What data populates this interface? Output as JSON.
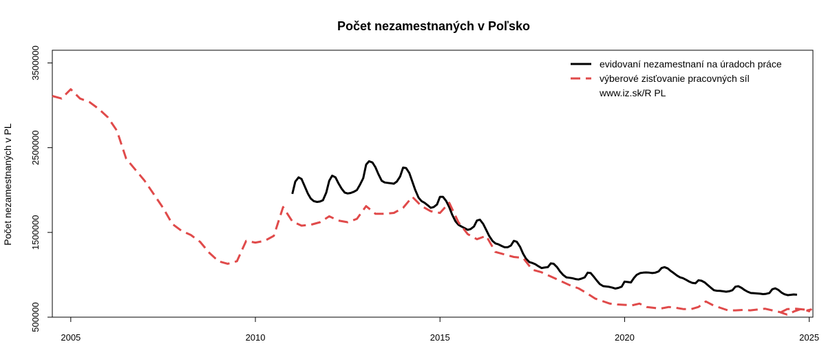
{
  "chart_data": {
    "type": "line",
    "title": "Počet nezamestnaných v Poľsko",
    "xlabel": "",
    "ylabel": "Počet nezamestnaných v PL",
    "xlim": [
      2004.5,
      2025.1
    ],
    "ylim": [
      500000,
      3650000
    ],
    "x_ticks": [
      2005,
      2010,
      2015,
      2020,
      2025
    ],
    "y_ticks": [
      500000,
      1500000,
      2500000,
      3500000
    ],
    "grid": false,
    "legend_position": "top-right",
    "legend_note": "www.iz.sk/R PL",
    "series": [
      {
        "name": "evidovaní nezamestnaní na úradoch práce",
        "color": "#000000",
        "style": "solid",
        "points": [
          [
            2011.0,
            1955000
          ],
          [
            2011.08,
            2100000
          ],
          [
            2011.17,
            2150000
          ],
          [
            2011.25,
            2130000
          ],
          [
            2011.33,
            2050000
          ],
          [
            2011.42,
            1960000
          ],
          [
            2011.5,
            1900000
          ],
          [
            2011.58,
            1870000
          ],
          [
            2011.67,
            1860000
          ],
          [
            2011.75,
            1865000
          ],
          [
            2011.83,
            1880000
          ],
          [
            2011.92,
            1970000
          ],
          [
            2012.0,
            2110000
          ],
          [
            2012.08,
            2170000
          ],
          [
            2012.17,
            2150000
          ],
          [
            2012.25,
            2080000
          ],
          [
            2012.33,
            2020000
          ],
          [
            2012.42,
            1970000
          ],
          [
            2012.5,
            1960000
          ],
          [
            2012.58,
            1965000
          ],
          [
            2012.67,
            1980000
          ],
          [
            2012.75,
            2000000
          ],
          [
            2012.83,
            2060000
          ],
          [
            2012.92,
            2140000
          ],
          [
            2013.0,
            2300000
          ],
          [
            2013.08,
            2340000
          ],
          [
            2013.17,
            2325000
          ],
          [
            2013.25,
            2270000
          ],
          [
            2013.33,
            2190000
          ],
          [
            2013.42,
            2110000
          ],
          [
            2013.5,
            2090000
          ],
          [
            2013.58,
            2085000
          ],
          [
            2013.67,
            2080000
          ],
          [
            2013.75,
            2075000
          ],
          [
            2013.83,
            2100000
          ],
          [
            2013.92,
            2160000
          ],
          [
            2014.0,
            2265000
          ],
          [
            2014.08,
            2260000
          ],
          [
            2014.17,
            2200000
          ],
          [
            2014.25,
            2100000
          ],
          [
            2014.33,
            2000000
          ],
          [
            2014.42,
            1910000
          ],
          [
            2014.5,
            1870000
          ],
          [
            2014.58,
            1850000
          ],
          [
            2014.67,
            1820000
          ],
          [
            2014.75,
            1790000
          ],
          [
            2014.83,
            1800000
          ],
          [
            2014.92,
            1830000
          ],
          [
            2015.0,
            1920000
          ],
          [
            2015.08,
            1920000
          ],
          [
            2015.17,
            1870000
          ],
          [
            2015.25,
            1800000
          ],
          [
            2015.33,
            1710000
          ],
          [
            2015.42,
            1630000
          ],
          [
            2015.5,
            1590000
          ],
          [
            2015.58,
            1570000
          ],
          [
            2015.67,
            1550000
          ],
          [
            2015.75,
            1530000
          ],
          [
            2015.83,
            1540000
          ],
          [
            2015.92,
            1570000
          ],
          [
            2016.0,
            1640000
          ],
          [
            2016.08,
            1650000
          ],
          [
            2016.17,
            1600000
          ],
          [
            2016.25,
            1530000
          ],
          [
            2016.33,
            1460000
          ],
          [
            2016.42,
            1400000
          ],
          [
            2016.5,
            1370000
          ],
          [
            2016.58,
            1360000
          ],
          [
            2016.67,
            1340000
          ],
          [
            2016.75,
            1325000
          ],
          [
            2016.83,
            1325000
          ],
          [
            2016.92,
            1345000
          ],
          [
            2017.0,
            1400000
          ],
          [
            2017.08,
            1390000
          ],
          [
            2017.17,
            1330000
          ],
          [
            2017.25,
            1250000
          ],
          [
            2017.33,
            1190000
          ],
          [
            2017.42,
            1150000
          ],
          [
            2017.5,
            1140000
          ],
          [
            2017.58,
            1125000
          ],
          [
            2017.67,
            1100000
          ],
          [
            2017.75,
            1080000
          ],
          [
            2017.83,
            1085000
          ],
          [
            2017.92,
            1090000
          ],
          [
            2018.0,
            1135000
          ],
          [
            2018.08,
            1130000
          ],
          [
            2018.17,
            1090000
          ],
          [
            2018.25,
            1040000
          ],
          [
            2018.33,
            1000000
          ],
          [
            2018.42,
            970000
          ],
          [
            2018.5,
            965000
          ],
          [
            2018.58,
            960000
          ],
          [
            2018.67,
            950000
          ],
          [
            2018.75,
            945000
          ],
          [
            2018.83,
            955000
          ],
          [
            2018.92,
            970000
          ],
          [
            2019.0,
            1025000
          ],
          [
            2019.08,
            1020000
          ],
          [
            2019.17,
            975000
          ],
          [
            2019.25,
            930000
          ],
          [
            2019.33,
            890000
          ],
          [
            2019.42,
            866000
          ],
          [
            2019.5,
            862000
          ],
          [
            2019.58,
            858000
          ],
          [
            2019.67,
            848000
          ],
          [
            2019.75,
            838000
          ],
          [
            2019.83,
            845000
          ],
          [
            2019.92,
            860000
          ],
          [
            2020.0,
            920000
          ],
          [
            2020.08,
            915000
          ],
          [
            2020.17,
            910000
          ],
          [
            2020.25,
            960000
          ],
          [
            2020.33,
            1000000
          ],
          [
            2020.42,
            1020000
          ],
          [
            2020.5,
            1025000
          ],
          [
            2020.58,
            1028000
          ],
          [
            2020.67,
            1025000
          ],
          [
            2020.75,
            1020000
          ],
          [
            2020.83,
            1025000
          ],
          [
            2020.92,
            1040000
          ],
          [
            2021.0,
            1080000
          ],
          [
            2021.08,
            1090000
          ],
          [
            2021.17,
            1075000
          ],
          [
            2021.25,
            1045000
          ],
          [
            2021.33,
            1020000
          ],
          [
            2021.42,
            990000
          ],
          [
            2021.5,
            970000
          ],
          [
            2021.58,
            960000
          ],
          [
            2021.67,
            940000
          ],
          [
            2021.75,
            920000
          ],
          [
            2021.83,
            905000
          ],
          [
            2021.92,
            900000
          ],
          [
            2022.0,
            935000
          ],
          [
            2022.08,
            930000
          ],
          [
            2022.17,
            910000
          ],
          [
            2022.25,
            880000
          ],
          [
            2022.33,
            850000
          ],
          [
            2022.42,
            818000
          ],
          [
            2022.5,
            812000
          ],
          [
            2022.58,
            810000
          ],
          [
            2022.67,
            805000
          ],
          [
            2022.75,
            800000
          ],
          [
            2022.83,
            805000
          ],
          [
            2022.92,
            818000
          ],
          [
            2023.0,
            860000
          ],
          [
            2023.08,
            865000
          ],
          [
            2023.17,
            845000
          ],
          [
            2023.25,
            820000
          ],
          [
            2023.33,
            800000
          ],
          [
            2023.42,
            785000
          ],
          [
            2023.5,
            783000
          ],
          [
            2023.58,
            780000
          ],
          [
            2023.67,
            777000
          ],
          [
            2023.75,
            772000
          ],
          [
            2023.83,
            775000
          ],
          [
            2023.92,
            785000
          ],
          [
            2024.0,
            830000
          ],
          [
            2024.08,
            840000
          ],
          [
            2024.17,
            820000
          ],
          [
            2024.25,
            790000
          ],
          [
            2024.33,
            770000
          ],
          [
            2024.42,
            760000
          ],
          [
            2024.5,
            764000
          ],
          [
            2024.58,
            768000
          ],
          [
            2024.67,
            765000
          ]
        ]
      },
      {
        "name": "výberové zisťovanie pracovných síl",
        "color": "#e04a4a",
        "style": "dashed",
        "points": [
          [
            2004.5,
            3110000
          ],
          [
            2004.75,
            3080000
          ],
          [
            2005.0,
            3190000
          ],
          [
            2005.25,
            3080000
          ],
          [
            2005.5,
            3040000
          ],
          [
            2005.75,
            2960000
          ],
          [
            2006.0,
            2860000
          ],
          [
            2006.25,
            2700000
          ],
          [
            2006.5,
            2370000
          ],
          [
            2006.75,
            2240000
          ],
          [
            2007.0,
            2110000
          ],
          [
            2007.25,
            1950000
          ],
          [
            2007.5,
            1790000
          ],
          [
            2007.75,
            1600000
          ],
          [
            2008.0,
            1520000
          ],
          [
            2008.25,
            1470000
          ],
          [
            2008.5,
            1390000
          ],
          [
            2008.75,
            1260000
          ],
          [
            2009.0,
            1160000
          ],
          [
            2009.25,
            1130000
          ],
          [
            2009.5,
            1160000
          ],
          [
            2009.75,
            1400000
          ],
          [
            2010.0,
            1380000
          ],
          [
            2010.25,
            1400000
          ],
          [
            2010.5,
            1460000
          ],
          [
            2010.75,
            1800000
          ],
          [
            2011.0,
            1630000
          ],
          [
            2011.25,
            1580000
          ],
          [
            2011.5,
            1590000
          ],
          [
            2011.75,
            1620000
          ],
          [
            2012.0,
            1690000
          ],
          [
            2012.25,
            1640000
          ],
          [
            2012.5,
            1620000
          ],
          [
            2012.75,
            1660000
          ],
          [
            2013.0,
            1810000
          ],
          [
            2013.25,
            1720000
          ],
          [
            2013.5,
            1720000
          ],
          [
            2013.75,
            1730000
          ],
          [
            2014.0,
            1790000
          ],
          [
            2014.25,
            1920000
          ],
          [
            2014.5,
            1810000
          ],
          [
            2014.75,
            1750000
          ],
          [
            2015.0,
            1730000
          ],
          [
            2015.25,
            1850000
          ],
          [
            2015.5,
            1620000
          ],
          [
            2015.75,
            1480000
          ],
          [
            2016.0,
            1420000
          ],
          [
            2016.25,
            1460000
          ],
          [
            2016.5,
            1270000
          ],
          [
            2016.75,
            1240000
          ],
          [
            2017.0,
            1210000
          ],
          [
            2017.25,
            1200000
          ],
          [
            2017.5,
            1060000
          ],
          [
            2017.75,
            1030000
          ],
          [
            2018.0,
            980000
          ],
          [
            2018.25,
            930000
          ],
          [
            2018.5,
            880000
          ],
          [
            2018.75,
            840000
          ],
          [
            2018.95,
            790000
          ],
          [
            2019.2,
            720000
          ],
          [
            2019.4,
            690000
          ],
          [
            2019.6,
            660000
          ],
          [
            2019.8,
            650000
          ],
          [
            2020.0,
            645000
          ],
          [
            2020.2,
            640000
          ],
          [
            2020.4,
            660000
          ],
          [
            2020.6,
            620000
          ],
          [
            2020.8,
            610000
          ],
          [
            2020.95,
            600000
          ],
          [
            2021.2,
            620000
          ],
          [
            2021.4,
            610000
          ],
          [
            2021.6,
            595000
          ],
          [
            2021.8,
            595000
          ],
          [
            2022.0,
            620000
          ],
          [
            2022.2,
            685000
          ],
          [
            2022.4,
            640000
          ],
          [
            2022.6,
            610000
          ],
          [
            2022.8,
            580000
          ],
          [
            2023.0,
            580000
          ],
          [
            2023.2,
            585000
          ],
          [
            2023.4,
            580000
          ],
          [
            2023.6,
            590000
          ],
          [
            2023.8,
            600000
          ],
          [
            2024.0,
            580000
          ],
          [
            2024.2,
            560000
          ],
          [
            2024.4,
            530000
          ],
          [
            2024.6,
            570000
          ],
          [
            2024.8,
            600000
          ],
          [
            2025.0,
            570000
          ],
          [
            2024.95,
            580000
          ],
          [
            2025.05,
            590000
          ],
          [
            2024.85,
            590000
          ],
          [
            2024.65,
            600000
          ],
          [
            2024.4,
            595000
          ],
          [
            2024.2,
            550000
          ]
        ]
      }
    ]
  }
}
